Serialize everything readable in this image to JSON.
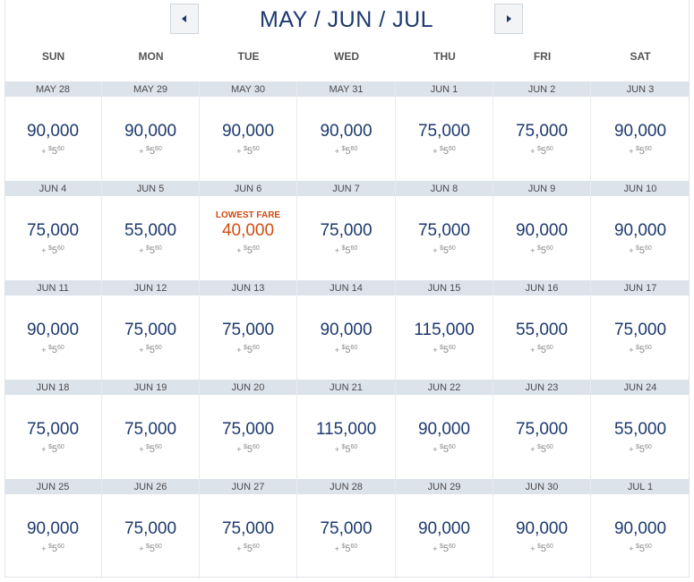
{
  "header": {
    "title": "MAY / JUN / JUL",
    "prev_icon": "triangle-left-icon",
    "next_icon": "triangle-right-icon"
  },
  "days_of_week": [
    "SUN",
    "MON",
    "TUE",
    "WED",
    "THU",
    "FRI",
    "SAT"
  ],
  "fee": {
    "prefix": "+",
    "currency": "$",
    "whole": "5",
    "cents": "60"
  },
  "lowest_label": "LOWEST FARE",
  "colors": {
    "price": "#1d3a6e",
    "lowest": "#d04c12",
    "date_bar": "#dde3eb"
  },
  "weeks": [
    [
      {
        "date": "MAY 28",
        "price": "90,000"
      },
      {
        "date": "MAY 29",
        "price": "90,000"
      },
      {
        "date": "MAY 30",
        "price": "90,000"
      },
      {
        "date": "MAY 31",
        "price": "90,000"
      },
      {
        "date": "JUN 1",
        "price": "75,000"
      },
      {
        "date": "JUN 2",
        "price": "75,000"
      },
      {
        "date": "JUN 3",
        "price": "90,000"
      }
    ],
    [
      {
        "date": "JUN 4",
        "price": "75,000"
      },
      {
        "date": "JUN 5",
        "price": "55,000"
      },
      {
        "date": "JUN 6",
        "price": "40,000",
        "lowest": true
      },
      {
        "date": "JUN 7",
        "price": "75,000"
      },
      {
        "date": "JUN 8",
        "price": "75,000"
      },
      {
        "date": "JUN 9",
        "price": "90,000"
      },
      {
        "date": "JUN 10",
        "price": "90,000"
      }
    ],
    [
      {
        "date": "JUN 11",
        "price": "90,000"
      },
      {
        "date": "JUN 12",
        "price": "75,000"
      },
      {
        "date": "JUN 13",
        "price": "75,000"
      },
      {
        "date": "JUN 14",
        "price": "90,000"
      },
      {
        "date": "JUN 15",
        "price": "115,000"
      },
      {
        "date": "JUN 16",
        "price": "55,000"
      },
      {
        "date": "JUN 17",
        "price": "75,000"
      }
    ],
    [
      {
        "date": "JUN 18",
        "price": "75,000"
      },
      {
        "date": "JUN 19",
        "price": "75,000"
      },
      {
        "date": "JUN 20",
        "price": "75,000"
      },
      {
        "date": "JUN 21",
        "price": "115,000"
      },
      {
        "date": "JUN 22",
        "price": "90,000"
      },
      {
        "date": "JUN 23",
        "price": "75,000"
      },
      {
        "date": "JUN 24",
        "price": "55,000"
      }
    ],
    [
      {
        "date": "JUN 25",
        "price": "90,000"
      },
      {
        "date": "JUN 26",
        "price": "75,000"
      },
      {
        "date": "JUN 27",
        "price": "75,000"
      },
      {
        "date": "JUN 28",
        "price": "75,000"
      },
      {
        "date": "JUN 29",
        "price": "90,000"
      },
      {
        "date": "JUN 30",
        "price": "90,000"
      },
      {
        "date": "JUL 1",
        "price": "90,000"
      }
    ]
  ]
}
